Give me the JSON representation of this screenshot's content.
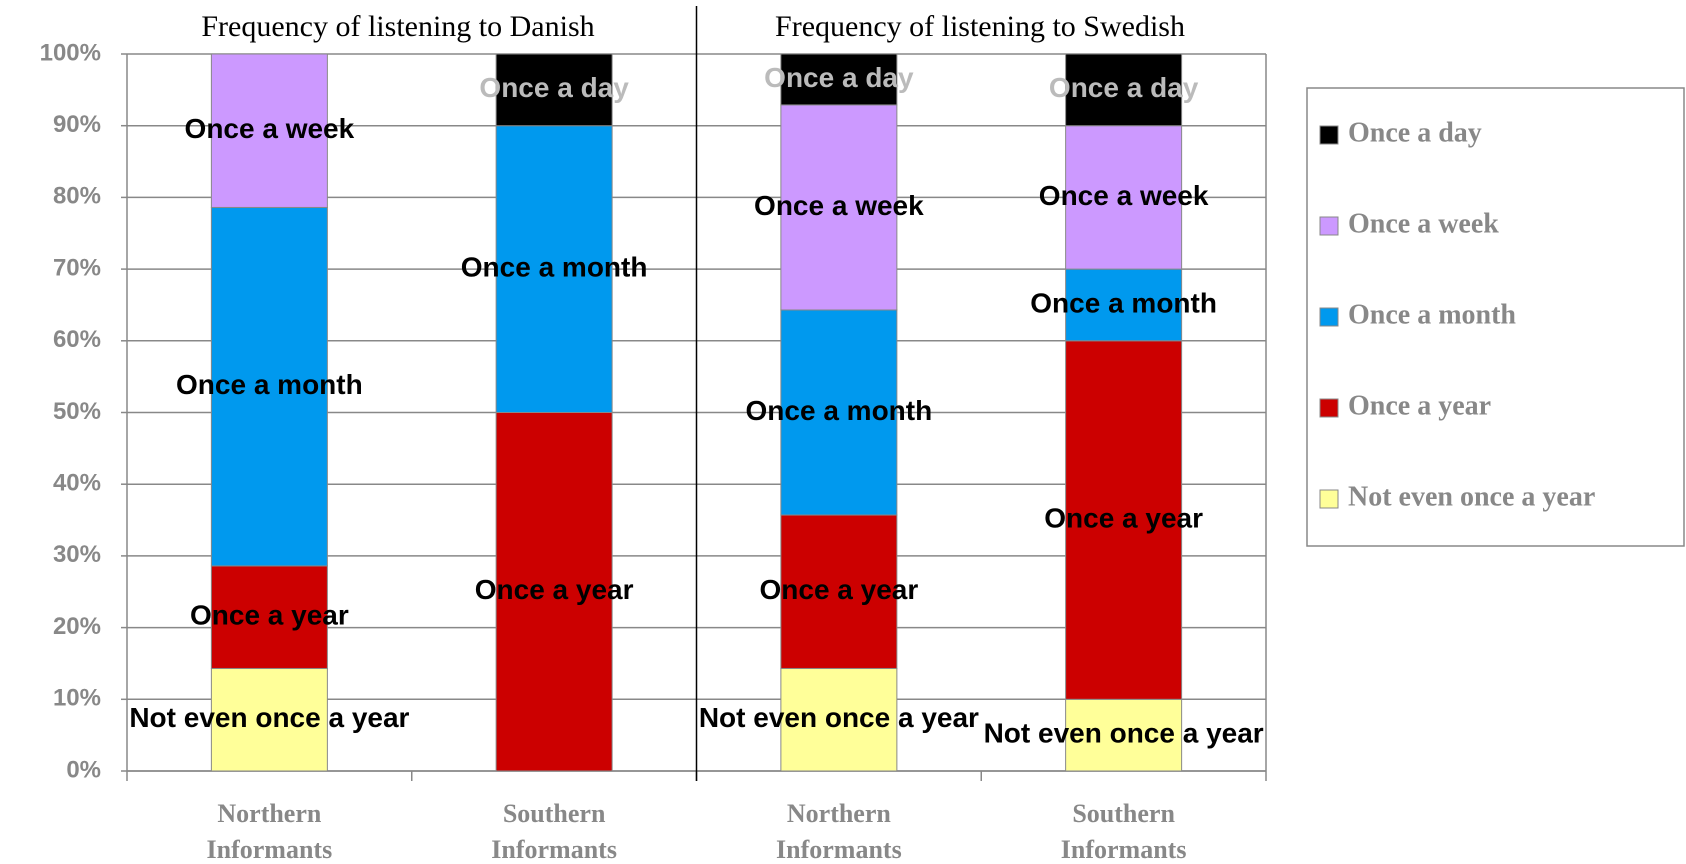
{
  "chart_data": {
    "type": "stacked_bar",
    "panel_titles": [
      "Frequency of listening to Danish",
      "Frequency of listening to Swedish"
    ],
    "categories": [
      "Northern Informants",
      "Southern Informants",
      "Northern Informants",
      "Southern Informants"
    ],
    "series": [
      {
        "name": "Not even once a year",
        "color": "#ffff99",
        "values": [
          14.3,
          0,
          14.3,
          10
        ]
      },
      {
        "name": "Once a year",
        "color": "#cc0000",
        "values": [
          14.3,
          50,
          21.4,
          50
        ]
      },
      {
        "name": "Once a month",
        "color": "#0099ee",
        "values": [
          50,
          40,
          28.6,
          10
        ]
      },
      {
        "name": "Once a week",
        "color": "#cc99ff",
        "values": [
          21.4,
          0,
          28.6,
          20
        ]
      },
      {
        "name": "Once a day",
        "color": "#000000",
        "values": [
          0,
          10,
          7.1,
          10
        ]
      }
    ],
    "ylim": [
      0,
      100
    ],
    "yticks": [
      {
        "value": 0,
        "label": "0%"
      },
      {
        "value": 10,
        "label": "10%"
      },
      {
        "value": 20,
        "label": "20%"
      },
      {
        "value": 30,
        "label": "30%"
      },
      {
        "value": 40,
        "label": "40%"
      },
      {
        "value": 50,
        "label": "50%"
      },
      {
        "value": 60,
        "label": "60%"
      },
      {
        "value": 70,
        "label": "70%"
      },
      {
        "value": 80,
        "label": "80%"
      },
      {
        "value": 90,
        "label": "90%"
      },
      {
        "value": 100,
        "label": "100%"
      }
    ],
    "grid": true,
    "legend": "right"
  }
}
